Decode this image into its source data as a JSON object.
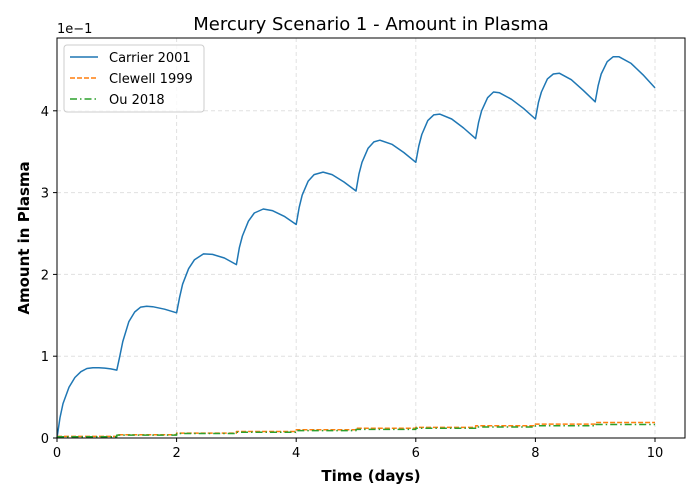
{
  "chart_data": {
    "type": "line",
    "title": "Mercury Scenario 1 - Amount in Plasma",
    "xlabel": "Time (days)",
    "ylabel": "Amount in Plasma",
    "y_offset_text": "1e−1",
    "xlim": [
      0,
      10.5
    ],
    "ylim": [
      0,
      4.9
    ],
    "y_scale_note": "values in units of 1e-1",
    "x_ticks": [
      0,
      2,
      4,
      6,
      8,
      10
    ],
    "y_ticks": [
      0,
      1,
      2,
      3,
      4
    ],
    "grid": true,
    "legend_position": "upper left",
    "series": [
      {
        "name": "Carrier 2001",
        "color": "#1f77b4",
        "style": "solid",
        "x": [
          0,
          0.05,
          0.1,
          0.2,
          0.3,
          0.4,
          0.5,
          0.6,
          0.7,
          0.8,
          0.9,
          1.0,
          1.05,
          1.1,
          1.2,
          1.3,
          1.4,
          1.5,
          1.6,
          1.8,
          2.0,
          2.05,
          2.1,
          2.2,
          2.3,
          2.45,
          2.6,
          2.8,
          3.0,
          3.05,
          3.1,
          3.2,
          3.3,
          3.45,
          3.6,
          3.8,
          4.0,
          4.05,
          4.1,
          4.2,
          4.3,
          4.45,
          4.6,
          4.8,
          5.0,
          5.05,
          5.1,
          5.2,
          5.3,
          5.4,
          5.6,
          5.8,
          6.0,
          6.05,
          6.1,
          6.2,
          6.3,
          6.4,
          6.6,
          6.8,
          7.0,
          7.05,
          7.1,
          7.2,
          7.3,
          7.4,
          7.6,
          7.8,
          8.0,
          8.05,
          8.1,
          8.2,
          8.3,
          8.4,
          8.6,
          8.8,
          9.0,
          9.05,
          9.1,
          9.2,
          9.3,
          9.4,
          9.6,
          9.8,
          10.0
        ],
        "values": [
          0.0,
          0.25,
          0.42,
          0.62,
          0.74,
          0.81,
          0.85,
          0.86,
          0.86,
          0.855,
          0.845,
          0.83,
          1.0,
          1.18,
          1.42,
          1.54,
          1.6,
          1.61,
          1.605,
          1.575,
          1.53,
          1.72,
          1.88,
          2.07,
          2.18,
          2.25,
          2.245,
          2.2,
          2.12,
          2.33,
          2.47,
          2.65,
          2.75,
          2.8,
          2.78,
          2.71,
          2.61,
          2.82,
          2.97,
          3.14,
          3.22,
          3.25,
          3.22,
          3.13,
          3.02,
          3.23,
          3.37,
          3.54,
          3.62,
          3.64,
          3.59,
          3.49,
          3.37,
          3.57,
          3.71,
          3.88,
          3.95,
          3.96,
          3.9,
          3.79,
          3.66,
          3.86,
          4.0,
          4.16,
          4.23,
          4.22,
          4.14,
          4.03,
          3.9,
          4.1,
          4.23,
          4.39,
          4.45,
          4.46,
          4.38,
          4.25,
          4.11,
          4.31,
          4.45,
          4.6,
          4.66,
          4.66,
          4.58,
          4.44,
          4.28
        ]
      },
      {
        "name": "Clewell 1999",
        "color": "#ff7f0e",
        "style": "dashed",
        "x": [
          0,
          1,
          1,
          2,
          2,
          3,
          3,
          4,
          4,
          5,
          5,
          6,
          6,
          7,
          7,
          8,
          8,
          9,
          9,
          10
        ],
        "values": [
          0.02,
          0.02,
          0.04,
          0.04,
          0.06,
          0.06,
          0.08,
          0.08,
          0.1,
          0.1,
          0.12,
          0.12,
          0.13,
          0.13,
          0.15,
          0.15,
          0.17,
          0.17,
          0.19,
          0.19
        ]
      },
      {
        "name": "Ou 2018",
        "color": "#2ca02c",
        "style": "dashdot",
        "x": [
          0,
          1,
          1,
          2,
          2,
          3,
          3,
          4,
          4,
          5,
          5,
          6,
          6,
          7,
          7,
          8,
          8,
          9,
          9,
          10
        ],
        "values": [
          0.015,
          0.015,
          0.035,
          0.035,
          0.055,
          0.055,
          0.07,
          0.07,
          0.09,
          0.09,
          0.105,
          0.105,
          0.12,
          0.12,
          0.135,
          0.135,
          0.15,
          0.15,
          0.165,
          0.165
        ]
      }
    ]
  }
}
